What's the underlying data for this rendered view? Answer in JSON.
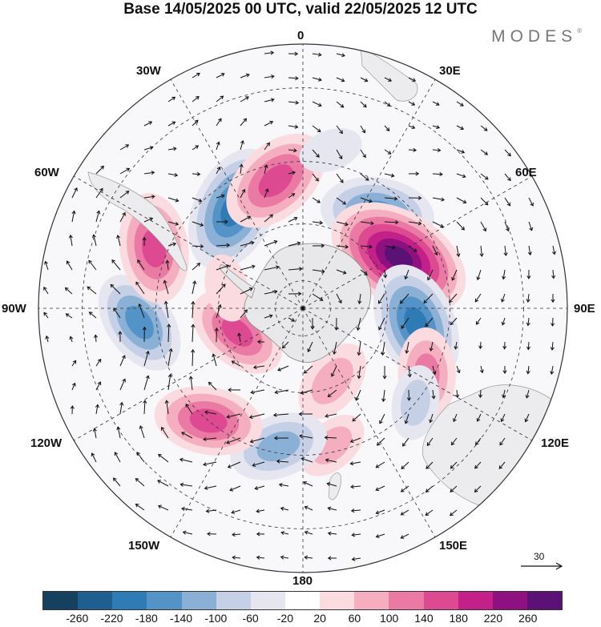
{
  "title": "Base 14/05/2025 00 UTC, valid 22/05/2025 12 UTC",
  "brand": "MODES",
  "brand_mark": "®",
  "longitude_labels": {
    "lon_0": "0",
    "lon_30e": "30E",
    "lon_60e": "60E",
    "lon_90e": "90E",
    "lon_120e": "120E",
    "lon_150e": "150E",
    "lon_180": "180",
    "lon_150w": "150W",
    "lon_120w": "120W",
    "lon_90w": "90W",
    "lon_60w": "60W",
    "lon_30w": "30W"
  },
  "reference_vector": {
    "label": "30"
  },
  "colorbar": {
    "ticks": [
      "-260",
      "-220",
      "-180",
      "-140",
      "-100",
      "-60",
      "-20",
      "20",
      "60",
      "100",
      "140",
      "180",
      "220",
      "260"
    ],
    "colors": [
      "#16405f",
      "#1f5f8f",
      "#2f7bb5",
      "#5393c7",
      "#8bb0d6",
      "#c5cfe6",
      "#e6e6f1",
      "#ffffff",
      "#fadbe0",
      "#f4aebf",
      "#ea7aa3",
      "#dd4a92",
      "#c3208a",
      "#8f1180",
      "#5c1177"
    ]
  },
  "map": {
    "projection": "south polar stereographic",
    "anomaly_cells": [
      {
        "lon": -35,
        "lat": -48,
        "value": -210
      },
      {
        "lon": -12,
        "lat": -45,
        "value": 175
      },
      {
        "lon": 38,
        "lat": -48,
        "value": -170
      },
      {
        "lon": 62,
        "lat": -52,
        "value": 265
      },
      {
        "lon": 98,
        "lat": -50,
        "value": -200
      },
      {
        "lon": 118,
        "lat": -42,
        "value": 110
      },
      {
        "lon": 130,
        "lat": -40,
        "value": -60
      },
      {
        "lon": 158,
        "lat": -62,
        "value": 90
      },
      {
        "lon": 168,
        "lat": -42,
        "value": 60
      },
      {
        "lon": -170,
        "lat": -42,
        "value": -130
      },
      {
        "lon": -140,
        "lat": -40,
        "value": 155
      },
      {
        "lon": -110,
        "lat": -65,
        "value": 140
      },
      {
        "lon": -95,
        "lat": -35,
        "value": -150
      },
      {
        "lon": -68,
        "lat": -36,
        "value": 160
      },
      {
        "lon": -75,
        "lat": -62,
        "value": 40
      },
      {
        "lon": 10,
        "lat": -36,
        "value": -30
      }
    ]
  }
}
